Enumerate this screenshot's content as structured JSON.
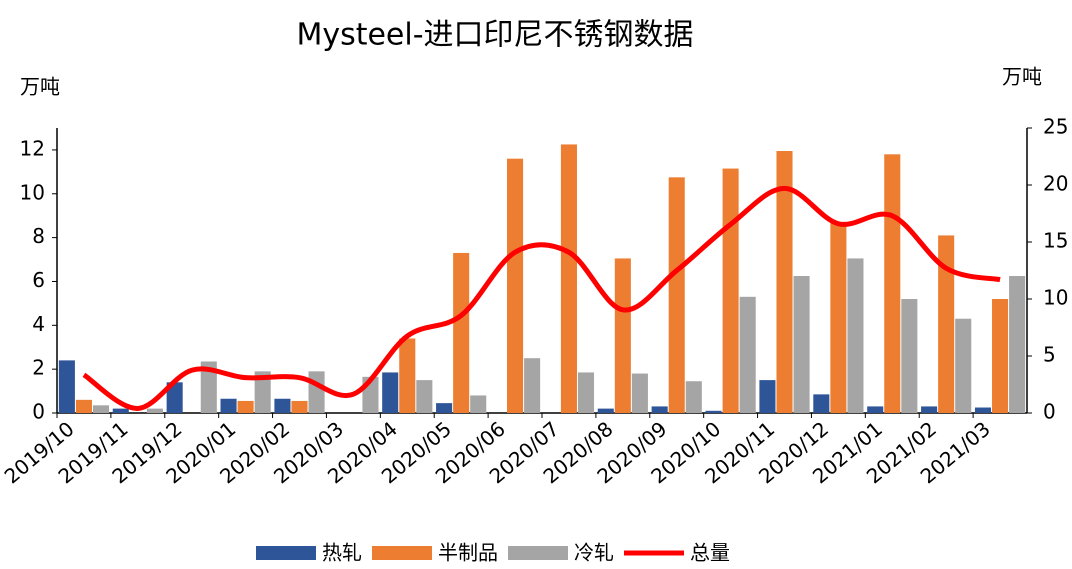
{
  "chart_data": {
    "type": "bar",
    "title": "Mysteel-进口印尼不锈钢数据",
    "y_label": "万吨",
    "y2_label": "万吨",
    "categories": [
      "2019/10",
      "2019/11",
      "2019/12",
      "2020/01",
      "2020/02",
      "2020/03",
      "2020/04",
      "2020/05",
      "2020/06",
      "2020/07",
      "2020/08",
      "2020/09",
      "2020/10",
      "2020/11",
      "2020/12",
      "2021/01",
      "2021/02",
      "2021/03"
    ],
    "series": [
      {
        "name": "热轧",
        "color": "#2e5597",
        "values": [
          2.4,
          0.2,
          1.4,
          0.65,
          0.65,
          0,
          1.85,
          0.45,
          0,
          0,
          0.2,
          0.3,
          0.1,
          1.5,
          0.85,
          0.3,
          0.3,
          0.25
        ]
      },
      {
        "name": "半制品",
        "color": "#ed7d31",
        "values": [
          0.6,
          0,
          0,
          0.55,
          0.55,
          0,
          3.4,
          7.3,
          11.6,
          12.25,
          7.05,
          10.75,
          11.15,
          11.95,
          8.7,
          11.8,
          8.1,
          5.2
        ]
      },
      {
        "name": "冷轧",
        "color": "#a5a5a5",
        "values": [
          0.35,
          0.2,
          2.35,
          1.9,
          1.9,
          1.65,
          1.5,
          0.8,
          2.5,
          1.85,
          1.8,
          1.45,
          5.3,
          6.25,
          7.05,
          5.2,
          4.3,
          6.25
        ]
      },
      {
        "name": "总量",
        "color": "#ff0000",
        "type": "line",
        "axis": "y2",
        "values": [
          3.35,
          0.4,
          3.75,
          3.1,
          3.1,
          1.65,
          6.75,
          8.55,
          14.1,
          14.1,
          9.05,
          12.5,
          16.55,
          19.7,
          16.6,
          17.3,
          12.7,
          11.7
        ]
      }
    ],
    "ylim": [
      0,
      13
    ],
    "yticks": [
      0,
      2,
      4,
      6,
      8,
      10,
      12
    ],
    "y2lim": [
      0,
      25
    ],
    "y2ticks": [
      0,
      5,
      10,
      15,
      20,
      25
    ],
    "legend": "bottom"
  }
}
